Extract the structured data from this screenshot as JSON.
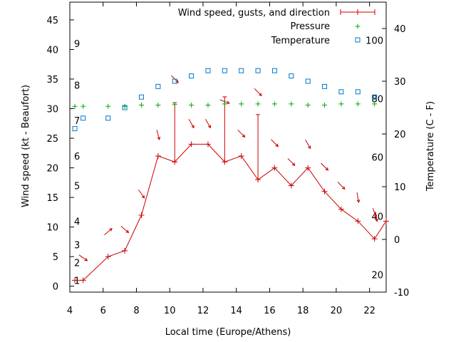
{
  "chart_data": {
    "type": "line",
    "xlabel": "Local time (Europe/Athens)",
    "ylabel": "Wind speed (kt - Beaufort)",
    "y2label": "Temperature (C - F)",
    "xlim": [
      4,
      23
    ],
    "ylim": [
      -1,
      48
    ],
    "y2lim": [
      -10,
      45
    ],
    "xticks": [
      4,
      6,
      8,
      10,
      12,
      14,
      16,
      18,
      20,
      22
    ],
    "yticks": [
      0,
      5,
      10,
      15,
      20,
      25,
      30,
      35,
      40,
      45
    ],
    "y2ticks": [
      -10,
      0,
      10,
      20,
      30,
      40
    ],
    "beaufort_labels": [
      {
        "text": "1",
        "y": 1
      },
      {
        "text": "2",
        "y": 4
      },
      {
        "text": "3",
        "y": 7
      },
      {
        "text": "4",
        "y": 11
      },
      {
        "text": "5",
        "y": 17
      },
      {
        "text": "6",
        "y": 22
      },
      {
        "text": "7",
        "y": 28
      },
      {
        "text": "8",
        "y": 34
      },
      {
        "text": "9",
        "y": 41
      }
    ],
    "fahrenheit_labels": [
      {
        "text": "20",
        "c": -6.7
      },
      {
        "text": "40",
        "c": 4.4
      },
      {
        "text": "60",
        "c": 15.6
      },
      {
        "text": "80",
        "c": 26.7
      },
      {
        "text": "100",
        "c": 37.8
      }
    ],
    "legend_position": "top-right",
    "series": [
      {
        "name": "Wind speed, gusts, and direction",
        "color": "#cc0000",
        "x": [
          4.3,
          4.8,
          6.3,
          7.3,
          8.3,
          9.3,
          10.3,
          11.3,
          12.3,
          13.3,
          14.3,
          15.3,
          16.3,
          17.3,
          18.3,
          19.3,
          20.3,
          21.3,
          22.3,
          23.0
        ],
        "values": [
          1,
          1,
          5,
          6,
          12,
          22,
          21,
          24,
          24,
          21,
          22,
          18,
          20,
          17,
          20,
          16,
          13,
          11,
          8,
          11
        ],
        "gusts": [
          null,
          null,
          null,
          null,
          null,
          null,
          31,
          null,
          null,
          32,
          null,
          29,
          null,
          null,
          null,
          null,
          null,
          null,
          null,
          null
        ],
        "direction_arrows": [
          {
            "x": 4.8,
            "y": 4.8,
            "angle": 35
          },
          {
            "x": 6.3,
            "y": 9.2,
            "angle": -40
          },
          {
            "x": 7.3,
            "y": 9.6,
            "angle": 40
          },
          {
            "x": 8.3,
            "y": 15.6,
            "angle": 55
          },
          {
            "x": 9.3,
            "y": 25.6,
            "angle": 75
          },
          {
            "x": 10.3,
            "y": 35.0,
            "angle": 45
          },
          {
            "x": 11.3,
            "y": 27.5,
            "angle": 60
          },
          {
            "x": 12.3,
            "y": 27.5,
            "angle": 60
          },
          {
            "x": 13.3,
            "y": 31.2,
            "angle": 20
          },
          {
            "x": 14.3,
            "y": 25.8,
            "angle": 45
          },
          {
            "x": 15.3,
            "y": 32.8,
            "angle": 45
          },
          {
            "x": 16.3,
            "y": 24.2,
            "angle": 45
          },
          {
            "x": 17.3,
            "y": 21.0,
            "angle": 45
          },
          {
            "x": 18.3,
            "y": 24.0,
            "angle": 60
          },
          {
            "x": 19.3,
            "y": 20.2,
            "angle": 45
          },
          {
            "x": 20.3,
            "y": 17.0,
            "angle": 45
          },
          {
            "x": 21.3,
            "y": 15.0,
            "angle": 80
          },
          {
            "x": 22.3,
            "y": 12.4,
            "angle": 70
          },
          {
            "x": 22.4,
            "y": 11.8,
            "angle": 80
          }
        ]
      },
      {
        "name": "Pressure",
        "color": "#00aa00",
        "x": [
          4.3,
          4.8,
          6.3,
          7.3,
          8.3,
          9.3,
          10.3,
          11.3,
          12.3,
          13.3,
          14.3,
          15.3,
          16.3,
          17.3,
          18.3,
          19.3,
          20.3,
          21.3,
          22.3
        ],
        "values": [
          30.4,
          30.4,
          30.4,
          30.4,
          30.6,
          30.6,
          30.7,
          30.6,
          30.6,
          30.8,
          30.8,
          30.8,
          30.8,
          30.8,
          30.6,
          30.6,
          30.8,
          30.8,
          30.8
        ]
      },
      {
        "name": "Temperature",
        "color": "#0077cc",
        "axis": "y2",
        "x": [
          4.3,
          4.8,
          6.3,
          7.3,
          8.3,
          9.3,
          10.3,
          11.3,
          12.3,
          13.3,
          14.3,
          15.3,
          16.3,
          17.3,
          18.3,
          19.3,
          20.3,
          21.3,
          22.3
        ],
        "values": [
          21,
          23,
          23,
          25,
          27,
          29,
          30,
          31,
          32,
          32,
          32,
          32,
          32,
          31,
          30,
          29,
          28,
          28,
          27
        ]
      }
    ]
  }
}
